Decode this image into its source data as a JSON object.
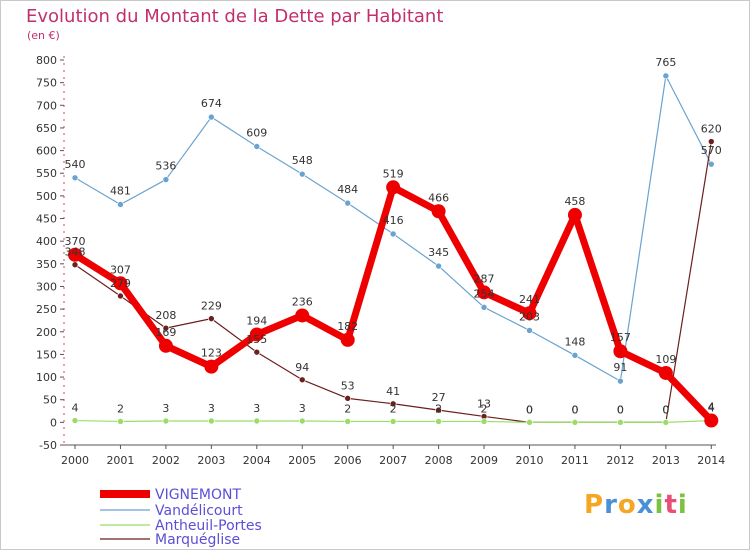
{
  "chart_data": {
    "type": "line",
    "title": "Evolution du Montant de la Dette par Habitant",
    "unit_label": "(en €)",
    "x": [
      "2000",
      "2001",
      "2002",
      "2003",
      "2004",
      "2005",
      "2006",
      "2007",
      "2008",
      "2009",
      "2010",
      "2011",
      "2012",
      "2013",
      "2014"
    ],
    "ylim": [
      -50,
      800
    ],
    "yticks": [
      -50,
      0,
      50,
      100,
      150,
      200,
      250,
      300,
      350,
      400,
      450,
      500,
      550,
      600,
      650,
      700,
      750,
      800
    ],
    "grid": false,
    "legend_position": "bottom-left",
    "series": [
      {
        "name": "VIGNEMONT",
        "color": "#ee0000",
        "values": [
          370,
          307,
          169,
          123,
          194,
          236,
          182,
          519,
          466,
          287,
          241,
          458,
          157,
          109,
          4
        ]
      },
      {
        "name": "Vandélicourt",
        "color": "#6aa3d0",
        "values": [
          540,
          481,
          536,
          674,
          609,
          548,
          484,
          416,
          345,
          254,
          203,
          148,
          91,
          765,
          570
        ]
      },
      {
        "name": "Antheuil-Portes",
        "color": "#99dd66",
        "values": [
          4,
          2,
          3,
          3,
          3,
          3,
          2,
          2,
          2,
          2,
          0,
          0,
          0,
          0,
          4
        ]
      },
      {
        "name": "Marquéglise",
        "color": "#6b1f1f",
        "values": [
          348,
          279,
          208,
          229,
          155,
          94,
          53,
          41,
          27,
          13,
          0,
          0,
          0,
          0,
          620
        ]
      }
    ]
  },
  "logo": {
    "letters": [
      "P",
      "r",
      "o",
      "x",
      "i",
      "t",
      "i"
    ],
    "colors": [
      "#f5a623",
      "#4a90d9",
      "#f5a623",
      "#4a90d9",
      "#7cc242",
      "#e94e77",
      "#7cc242"
    ]
  }
}
